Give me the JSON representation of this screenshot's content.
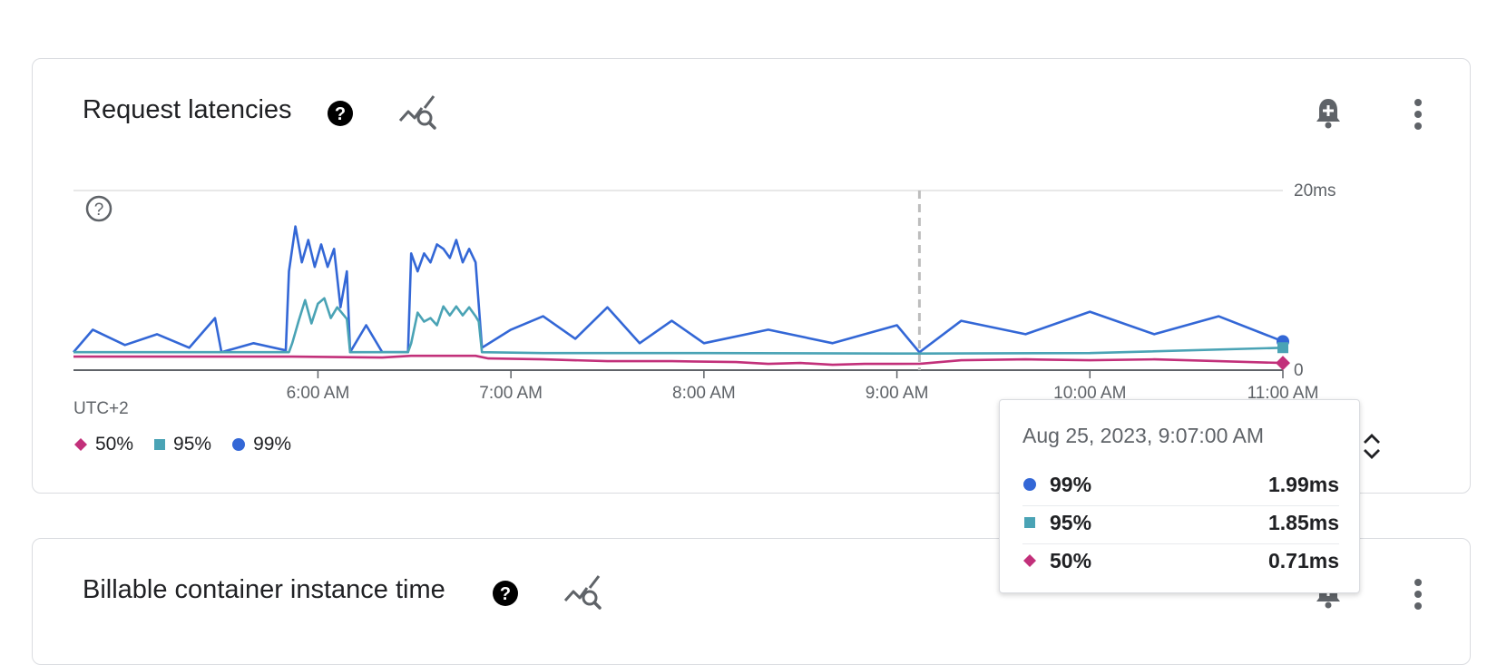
{
  "cards": [
    {
      "title": "Request latencies"
    },
    {
      "title": "Billable container instance time"
    }
  ],
  "icons": {
    "help": "help-circle-icon",
    "explore": "chart-explore-icon",
    "alert": "bell-add-icon",
    "more": "more-vert-icon",
    "chart_help": "help-outline-icon",
    "expand": "unfold-more-icon"
  },
  "chart_data": {
    "type": "line",
    "title": "Request latencies",
    "timezone_label": "UTC+2",
    "x_ticks": [
      "6:00 AM",
      "7:00 AM",
      "8:00 AM",
      "9:00 AM",
      "10:00 AM",
      "11:00 AM"
    ],
    "y_ticks": [
      "0",
      "20ms"
    ],
    "ylim": [
      0,
      20
    ],
    "x_range": [
      "4:44 AM",
      "11:00 AM"
    ],
    "grid": true,
    "legend_position": "bottom-left",
    "hover_time": "9:07 AM",
    "series": [
      {
        "name": "50%",
        "color": "#c2307a",
        "marker": "diamond",
        "times": [
          "4:44 AM",
          "5:51 AM",
          "5:52 AM",
          "6:20 AM",
          "6:29 AM",
          "6:49 AM",
          "6:53 AM",
          "7:10 AM",
          "7:30 AM",
          "7:50 AM",
          "8:10 AM",
          "8:20 AM",
          "8:30 AM",
          "8:40 AM",
          "8:50 AM",
          "9:00 AM",
          "9:07 AM",
          "9:20 AM",
          "9:40 AM",
          "10:00 AM",
          "10:20 AM",
          "10:40 AM",
          "11:00 AM"
        ],
        "values": [
          1.5,
          1.5,
          1.5,
          1.4,
          1.6,
          1.6,
          1.3,
          1.2,
          1.0,
          1.0,
          0.9,
          0.7,
          0.8,
          0.6,
          0.7,
          0.7,
          0.71,
          1.1,
          1.2,
          1.1,
          1.2,
          1.0,
          0.8
        ]
      },
      {
        "name": "95%",
        "color": "#4aa3b5",
        "marker": "square",
        "times": [
          "4:44 AM",
          "5:51 AM",
          "5:52 AM",
          "5:54 AM",
          "5:56 AM",
          "5:58 AM",
          "6:00 AM",
          "6:02 AM",
          "6:04 AM",
          "6:06 AM",
          "6:09 AM",
          "6:10 AM",
          "6:28 AM",
          "6:29 AM",
          "6:31 AM",
          "6:33 AM",
          "6:35 AM",
          "6:37 AM",
          "6:39 AM",
          "6:41 AM",
          "6:43 AM",
          "6:45 AM",
          "6:47 AM",
          "6:49 AM",
          "6:50 AM",
          "6:51 AM",
          "7:10 AM",
          "8:00 AM",
          "9:00 AM",
          "9:07 AM",
          "10:00 AM",
          "11:00 AM"
        ],
        "values": [
          2.0,
          2.0,
          3.0,
          5.5,
          7.8,
          5.2,
          7.4,
          8.0,
          5.8,
          7.0,
          5.7,
          2.0,
          2.0,
          3.0,
          6.4,
          5.4,
          5.8,
          5.0,
          7.1,
          6.1,
          7.1,
          6.1,
          7.0,
          6.0,
          5.4,
          2.0,
          1.9,
          1.9,
          1.85,
          1.85,
          1.9,
          2.5
        ]
      },
      {
        "name": "99%",
        "color": "#3367d6",
        "marker": "circle",
        "times": [
          "4:44 AM",
          "4:50 AM",
          "5:00 AM",
          "5:10 AM",
          "5:20 AM",
          "5:28 AM",
          "5:30 AM",
          "5:40 AM",
          "5:50 AM",
          "5:51 AM",
          "5:53 AM",
          "5:55 AM",
          "5:57 AM",
          "5:59 AM",
          "6:01 AM",
          "6:03 AM",
          "6:05 AM",
          "6:07 AM",
          "6:09 AM",
          "6:10 AM",
          "6:15 AM",
          "6:20 AM",
          "6:28 AM",
          "6:29 AM",
          "6:31 AM",
          "6:33 AM",
          "6:35 AM",
          "6:37 AM",
          "6:39 AM",
          "6:41 AM",
          "6:43 AM",
          "6:45 AM",
          "6:47 AM",
          "6:49 AM",
          "6:51 AM",
          "7:00 AM",
          "7:10 AM",
          "7:20 AM",
          "7:30 AM",
          "7:40 AM",
          "7:50 AM",
          "8:00 AM",
          "8:20 AM",
          "8:40 AM",
          "9:00 AM",
          "9:07 AM",
          "9:20 AM",
          "9:40 AM",
          "10:00 AM",
          "10:20 AM",
          "10:40 AM",
          "11:00 AM"
        ],
        "values": [
          2.0,
          4.5,
          2.8,
          4.0,
          2.5,
          5.8,
          2.0,
          3.0,
          2.2,
          11.0,
          16.0,
          12.0,
          14.5,
          11.5,
          14.0,
          11.5,
          13.5,
          7.0,
          11.0,
          2.0,
          5.0,
          2.0,
          2.0,
          13.0,
          11.0,
          13.0,
          12.0,
          14.0,
          13.5,
          12.5,
          14.5,
          12.0,
          13.5,
          12.0,
          2.5,
          4.5,
          6.0,
          3.5,
          7.0,
          3.0,
          5.5,
          3.0,
          4.5,
          3.0,
          5.0,
          1.99,
          5.5,
          4.0,
          6.5,
          4.0,
          6.0,
          3.2
        ]
      }
    ]
  },
  "tooltip": {
    "timestamp": "Aug 25, 2023, 9:07:00 AM",
    "rows": [
      {
        "name": "99%",
        "value": "1.99ms",
        "color": "#3367d6",
        "marker": "circle"
      },
      {
        "name": "95%",
        "value": "1.85ms",
        "color": "#4aa3b5",
        "marker": "square"
      },
      {
        "name": "50%",
        "value": "0.71ms",
        "color": "#c2307a",
        "marker": "diamond"
      }
    ]
  }
}
